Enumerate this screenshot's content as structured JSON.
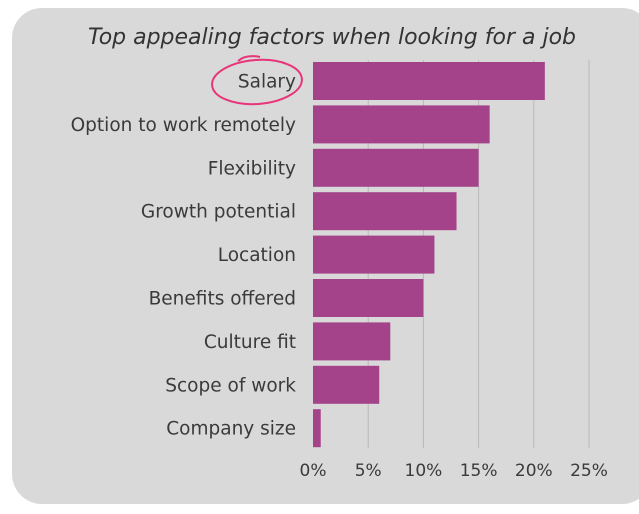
{
  "chart_data": {
    "type": "bar",
    "orientation": "horizontal",
    "title": "Top appealing factors when looking for a job",
    "categories": [
      "Salary",
      "Option to work remotely",
      "Flexibility",
      "Growth potential",
      "Location",
      "Benefits offered",
      "Culture fit",
      "Scope of work",
      "Company size"
    ],
    "values": [
      21,
      16,
      15,
      13,
      11,
      10,
      7,
      6,
      0.7
    ],
    "xlim": [
      0,
      25
    ],
    "x_ticks": [
      0,
      5,
      10,
      15,
      20,
      25
    ],
    "x_tick_labels": [
      "0%",
      "5%",
      "10%",
      "15%",
      "20%",
      "25%"
    ],
    "grid": "vertical",
    "bar_color": "#a4428a",
    "highlight": {
      "category": "Salary",
      "style": "hand-drawn circle",
      "color": "#e8357a"
    }
  }
}
